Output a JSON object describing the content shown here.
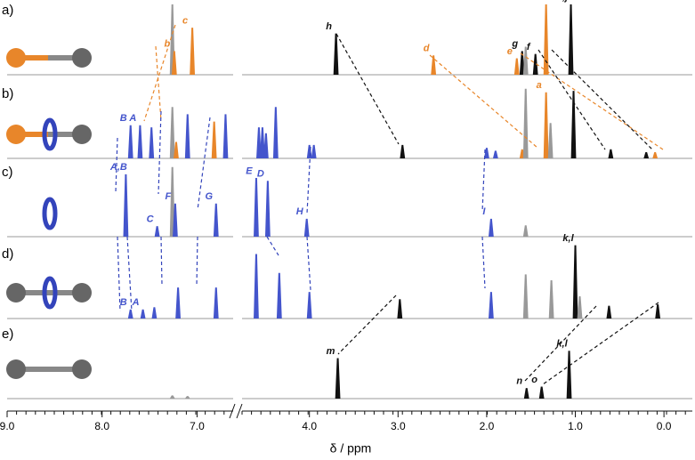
{
  "chart_data": {
    "type": "nmr-stack",
    "x_label": "δ / ppm",
    "segments": [
      {
        "xlim": [
          9.0,
          6.62
        ]
      },
      {
        "xlim": [
          4.76,
          -0.32
        ]
      }
    ],
    "xticks": [
      {
        "value": 9.0,
        "label": "9.0"
      },
      {
        "value": 8.0,
        "label": "8.0"
      },
      {
        "value": 7.0,
        "label": "7.0"
      },
      {
        "value": 4.0,
        "label": "4.0"
      },
      {
        "value": 3.0,
        "label": "3.0"
      },
      {
        "value": 2.0,
        "label": "2.0"
      },
      {
        "value": 1.0,
        "label": "1.0"
      },
      {
        "value": 0.0,
        "label": "0.0"
      }
    ],
    "panels": [
      {
        "label": "a)",
        "peaks": [
          {
            "ppm": 7.26,
            "height": 96,
            "color": "#999999"
          },
          {
            "ppm": 7.24,
            "height": 32,
            "color": "#e8862a",
            "label": "b"
          },
          {
            "ppm": 7.05,
            "height": 64,
            "color": "#e8862a",
            "label": "c"
          },
          {
            "ppm": 3.7,
            "height": 56,
            "color": "#111111",
            "label": "h"
          },
          {
            "ppm": 2.6,
            "height": 26,
            "color": "#e8862a",
            "label": "d"
          },
          {
            "ppm": 1.66,
            "height": 22,
            "color": "#e8862a",
            "label": "e"
          },
          {
            "ppm": 1.6,
            "height": 32,
            "color": "#111111",
            "label": "g"
          },
          {
            "ppm": 1.56,
            "height": 38,
            "color": "#999999"
          },
          {
            "ppm": 1.45,
            "height": 28,
            "color": "#111111",
            "label": "f"
          },
          {
            "ppm": 1.33,
            "height": 96,
            "color": "#e8862a",
            "label": "a"
          },
          {
            "ppm": 1.05,
            "height": 96,
            "color": "#111111",
            "label": "i,j"
          }
        ]
      },
      {
        "label": "b)",
        "peaks": [
          {
            "ppm": 7.7,
            "height": 45,
            "color": "#4455cc",
            "label": "B"
          },
          {
            "ppm": 7.6,
            "height": 45,
            "color": "#4455cc",
            "label": "A"
          },
          {
            "ppm": 7.48,
            "height": 42,
            "color": "#4455cc"
          },
          {
            "ppm": 7.26,
            "height": 70,
            "color": "#999999"
          },
          {
            "ppm": 7.22,
            "height": 22,
            "color": "#e8862a"
          },
          {
            "ppm": 7.1,
            "height": 60,
            "color": "#4455cc"
          },
          {
            "ppm": 6.82,
            "height": 50,
            "color": "#e8862a"
          },
          {
            "ppm": 6.7,
            "height": 60,
            "color": "#4455cc"
          },
          {
            "ppm": 4.57,
            "height": 42,
            "color": "#4455cc"
          },
          {
            "ppm": 4.53,
            "height": 42,
            "color": "#4455cc"
          },
          {
            "ppm": 4.49,
            "height": 34,
            "color": "#4455cc"
          },
          {
            "ppm": 4.38,
            "height": 70,
            "color": "#4455cc"
          },
          {
            "ppm": 4.0,
            "height": 18,
            "color": "#4455cc"
          },
          {
            "ppm": 3.95,
            "height": 18,
            "color": "#4455cc"
          },
          {
            "ppm": 2.95,
            "height": 18,
            "color": "#111111"
          },
          {
            "ppm": 2.0,
            "height": 14,
            "color": "#4455cc"
          },
          {
            "ppm": 1.9,
            "height": 10,
            "color": "#4455cc"
          },
          {
            "ppm": 1.6,
            "height": 12,
            "color": "#e8862a"
          },
          {
            "ppm": 1.56,
            "height": 95,
            "color": "#999999"
          },
          {
            "ppm": 1.33,
            "height": 90,
            "color": "#e8862a",
            "label": "a"
          },
          {
            "ppm": 1.28,
            "height": 48,
            "color": "#999999"
          },
          {
            "ppm": 1.02,
            "height": 92,
            "color": "#111111"
          },
          {
            "ppm": 0.6,
            "height": 12,
            "color": "#111111"
          },
          {
            "ppm": 0.2,
            "height": 8,
            "color": "#111111"
          },
          {
            "ppm": 0.1,
            "height": 8,
            "color": "#e8862a"
          }
        ]
      },
      {
        "label": "c)",
        "peaks": [
          {
            "ppm": 7.75,
            "height": 85,
            "color": "#4455cc",
            "label": "A,B"
          },
          {
            "ppm": 7.42,
            "height": 14,
            "color": "#4455cc",
            "label": "C"
          },
          {
            "ppm": 7.26,
            "height": 95,
            "color": "#999999"
          },
          {
            "ppm": 7.23,
            "height": 45,
            "color": "#4455cc",
            "label": "F"
          },
          {
            "ppm": 6.8,
            "height": 45,
            "color": "#4455cc",
            "label": "G"
          },
          {
            "ppm": 4.6,
            "height": 80,
            "color": "#4455cc",
            "label": "E"
          },
          {
            "ppm": 4.47,
            "height": 76,
            "color": "#4455cc",
            "label": "D"
          },
          {
            "ppm": 4.03,
            "height": 24,
            "color": "#4455cc",
            "label": "H"
          },
          {
            "ppm": 1.95,
            "height": 24,
            "color": "#4455cc",
            "label": "I"
          },
          {
            "ppm": 1.56,
            "height": 15,
            "color": "#999999"
          }
        ]
      },
      {
        "label": "d)",
        "peaks": [
          {
            "ppm": 7.7,
            "height": 12,
            "color": "#4455cc",
            "label": "B"
          },
          {
            "ppm": 7.57,
            "height": 12,
            "color": "#4455cc",
            "label": "A"
          },
          {
            "ppm": 7.45,
            "height": 15,
            "color": "#4455cc"
          },
          {
            "ppm": 7.2,
            "height": 42,
            "color": "#4455cc"
          },
          {
            "ppm": 6.8,
            "height": 42,
            "color": "#4455cc"
          },
          {
            "ppm": 4.6,
            "height": 88,
            "color": "#4455cc"
          },
          {
            "ppm": 4.34,
            "height": 62,
            "color": "#4455cc"
          },
          {
            "ppm": 4.0,
            "height": 36,
            "color": "#4455cc"
          },
          {
            "ppm": 2.98,
            "height": 26,
            "color": "#111111"
          },
          {
            "ppm": 1.95,
            "height": 36,
            "color": "#4455cc"
          },
          {
            "ppm": 1.56,
            "height": 60,
            "color": "#999999"
          },
          {
            "ppm": 1.27,
            "height": 52,
            "color": "#999999"
          },
          {
            "ppm": 1.0,
            "height": 100,
            "color": "#111111",
            "label": "k,l"
          },
          {
            "ppm": 0.95,
            "height": 30,
            "color": "#999999"
          },
          {
            "ppm": 0.62,
            "height": 17,
            "color": "#111111"
          },
          {
            "ppm": 0.07,
            "height": 19,
            "color": "#111111"
          }
        ]
      },
      {
        "label": "e)",
        "peaks": [
          {
            "ppm": 7.26,
            "height": 4,
            "color": "#999999"
          },
          {
            "ppm": 7.1,
            "height": 3,
            "color": "#999999"
          },
          {
            "ppm": 3.68,
            "height": 55,
            "color": "#111111",
            "label": "m"
          },
          {
            "ppm": 1.55,
            "height": 14,
            "color": "#111111",
            "label": "n"
          },
          {
            "ppm": 1.38,
            "height": 16,
            "color": "#111111",
            "label": "o"
          },
          {
            "ppm": 1.07,
            "height": 65,
            "color": "#111111",
            "label": "k,l"
          }
        ]
      }
    ]
  }
}
